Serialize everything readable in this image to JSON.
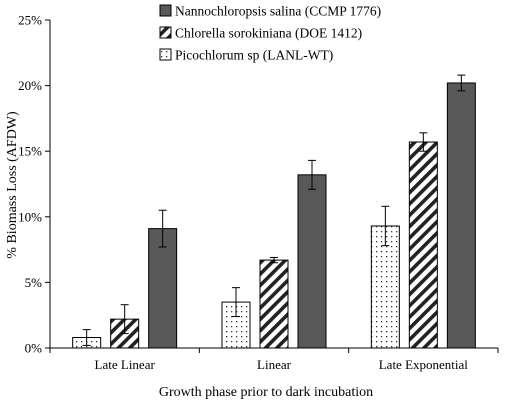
{
  "chart_data": {
    "type": "bar",
    "title": "",
    "xlabel": "Growth phase prior to dark incubation",
    "ylabel": "% Biomass Loss (AFDW)",
    "categories": [
      "Late Linear",
      "Linear",
      "Late Exponential"
    ],
    "ylim": [
      0,
      25
    ],
    "yticks": [
      0,
      5,
      10,
      15,
      20,
      25
    ],
    "ytick_labels": [
      "0%",
      "5%",
      "10%",
      "15%",
      "20%",
      "25%"
    ],
    "grid": false,
    "legend_position": "top-left",
    "series": [
      {
        "name": "Picochlorum sp (LANL-WT)",
        "pattern": "dots",
        "color": "#ffffff",
        "values": [
          0.8,
          3.5,
          9.3
        ],
        "errors": [
          0.6,
          1.1,
          1.5
        ]
      },
      {
        "name": "Chlorella sorokiniana (DOE 1412)",
        "pattern": "diagonal-stripes",
        "color": "#ffffff",
        "values": [
          2.2,
          6.7,
          15.7
        ],
        "errors": [
          1.1,
          0.2,
          0.7
        ]
      },
      {
        "name": "Nannochloropsis salina (CCMP 1776)",
        "pattern": "solid",
        "color": "#595959",
        "values": [
          9.1,
          13.2,
          20.2
        ],
        "errors": [
          1.4,
          1.1,
          0.6
        ]
      }
    ],
    "legend_order": [
      2,
      1,
      0
    ]
  }
}
